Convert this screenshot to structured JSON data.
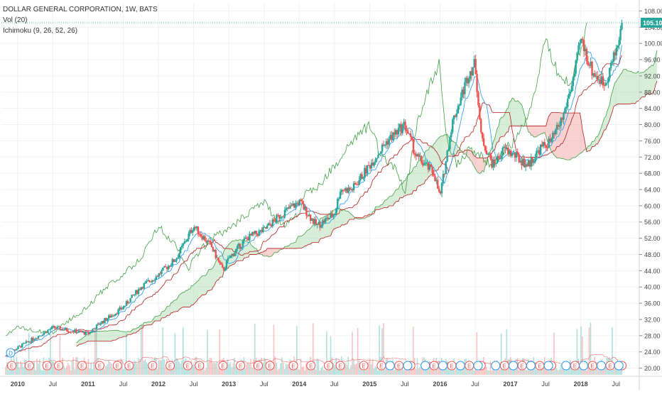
{
  "legend": {
    "title": "DOLLAR GENERAL CORPORATION, 1W, BATS",
    "volume": "Vol (20)",
    "ichimoku": "Ichimoku (9, 26, 52, 26)"
  },
  "price_badge": "105.10",
  "dividend_marker": "D",
  "earnings_marker": "E",
  "colors": {
    "up": "#26a69a",
    "down": "#ef5350",
    "tenkan": "#2196f3",
    "kijun": "#b71c1c",
    "lagging": "#43a047",
    "cloud_bull": "#a5d6a7",
    "cloud_bear": "#ef9a9a",
    "badge": "#26a69a"
  },
  "chart_data": {
    "type": "candlestick",
    "title": "DOLLAR GENERAL CORPORATION, 1W, BATS",
    "ylim": [
      18,
      110
    ],
    "y_ticks": [
      "108.00",
      "104.00",
      "100.00",
      "96.00",
      "92.00",
      "88.00",
      "84.00",
      "80.00",
      "76.00",
      "72.00",
      "68.00",
      "64.00",
      "60.00",
      "56.00",
      "52.00",
      "48.00",
      "44.00",
      "40.00",
      "36.00",
      "32.00",
      "28.00",
      "24.00",
      "20.00"
    ],
    "x_ticks": [
      "2010",
      "Jul",
      "2011",
      "Jul",
      "2012",
      "Jul",
      "2013",
      "Jul",
      "2014",
      "Jul",
      "2015",
      "Jul",
      "2016",
      "Jul",
      "2017",
      "Jul",
      "2018",
      "Jul"
    ],
    "last_price": 105.1,
    "anchors": [
      [
        "2009-11",
        23
      ],
      [
        "2010-01",
        25
      ],
      [
        "2010-07",
        30
      ],
      [
        "2011-01",
        28.5
      ],
      [
        "2011-03",
        31
      ],
      [
        "2011-07",
        35
      ],
      [
        "2011-10",
        40
      ],
      [
        "2012-01",
        43
      ],
      [
        "2012-04",
        47
      ],
      [
        "2012-07",
        55
      ],
      [
        "2012-10",
        50
      ],
      [
        "2012-12",
        44
      ],
      [
        "2013-01",
        47
      ],
      [
        "2013-04",
        52
      ],
      [
        "2013-07",
        54
      ],
      [
        "2013-10",
        58
      ],
      [
        "2014-01",
        61
      ],
      [
        "2014-04",
        55
      ],
      [
        "2014-07",
        58
      ],
      [
        "2014-08",
        64
      ],
      [
        "2014-10",
        64
      ],
      [
        "2015-01",
        70
      ],
      [
        "2015-04",
        76
      ],
      [
        "2015-07",
        80
      ],
      [
        "2015-09",
        72
      ],
      [
        "2015-12",
        68
      ],
      [
        "2016-01",
        62
      ],
      [
        "2016-03",
        80
      ],
      [
        "2016-06",
        93
      ],
      [
        "2016-07",
        95
      ],
      [
        "2016-08",
        77
      ],
      [
        "2016-10",
        70
      ],
      [
        "2016-12",
        74
      ],
      [
        "2017-02",
        72
      ],
      [
        "2017-04",
        70
      ],
      [
        "2017-06",
        74
      ],
      [
        "2017-08",
        76
      ],
      [
        "2017-10",
        82
      ],
      [
        "2017-12",
        93
      ],
      [
        "2018-01",
        101
      ],
      [
        "2018-03",
        93
      ],
      [
        "2018-05",
        90
      ],
      [
        "2018-07",
        98
      ],
      [
        "2018-08",
        105.1
      ]
    ],
    "earnings_dates": [
      "2009-12",
      "2010-03",
      "2010-06",
      "2010-08",
      "2010-12",
      "2011-03",
      "2011-06",
      "2011-08",
      "2011-12",
      "2012-03",
      "2012-06",
      "2012-08",
      "2012-12",
      "2013-03",
      "2013-06",
      "2013-08",
      "2013-12",
      "2014-03",
      "2014-06",
      "2014-08",
      "2014-12",
      "2015-03",
      "2015-06",
      "2015-08",
      "2015-12",
      "2016-03",
      "2016-06",
      "2016-08",
      "2016-12",
      "2017-03",
      "2017-06",
      "2017-08",
      "2017-12",
      "2018-03",
      "2018-06",
      "2018-08"
    ],
    "dividend_dates": [
      "2015-04",
      "2015-07",
      "2015-10",
      "2016-01",
      "2016-04",
      "2016-07",
      "2016-10",
      "2017-01",
      "2017-04",
      "2017-07",
      "2017-10",
      "2018-01",
      "2018-04",
      "2018-07"
    ]
  }
}
